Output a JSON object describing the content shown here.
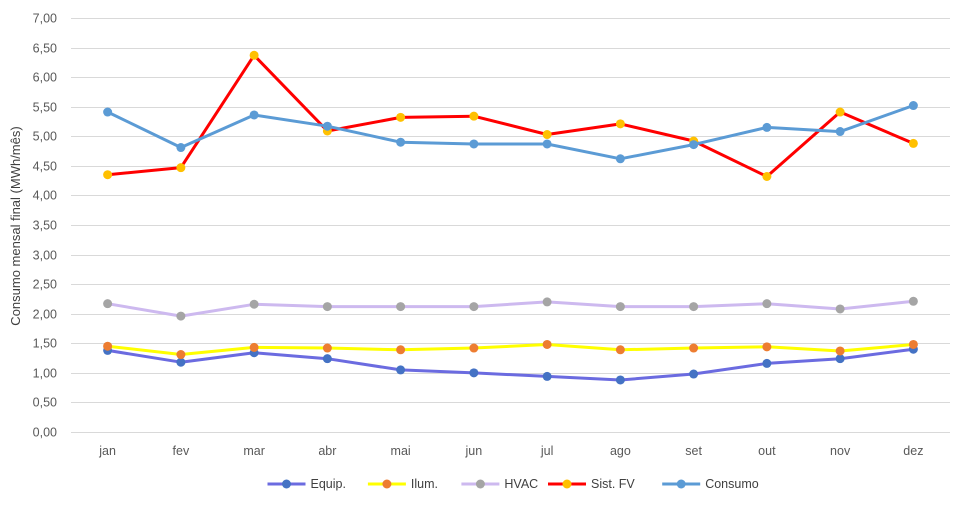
{
  "chart_data": {
    "type": "line",
    "title": "",
    "xlabel": "",
    "ylabel": "Consumo mensal final (MWh/mês)",
    "ylim": [
      0,
      7
    ],
    "y_ticks": [
      "0,00",
      "0,50",
      "1,00",
      "1,50",
      "2,00",
      "2,50",
      "3,00",
      "3,50",
      "4,00",
      "4,50",
      "5,00",
      "5,50",
      "6,00",
      "6,50",
      "7,00"
    ],
    "categories": [
      "jan",
      "fev",
      "mar",
      "abr",
      "mai",
      "jun",
      "jul",
      "ago",
      "set",
      "out",
      "nov",
      "dez"
    ],
    "grid": true,
    "legend_position": "bottom",
    "series": [
      {
        "name": "Equip.",
        "line_color": "#6b6be0",
        "marker_color": "#4472c4",
        "values": [
          1.38,
          1.18,
          1.34,
          1.24,
          1.05,
          1.0,
          0.94,
          0.88,
          0.98,
          1.16,
          1.24,
          1.4
        ]
      },
      {
        "name": "Ilum.",
        "line_color": "#ffff00",
        "marker_color": "#ed7d31",
        "values": [
          1.45,
          1.31,
          1.43,
          1.42,
          1.39,
          1.42,
          1.48,
          1.39,
          1.42,
          1.44,
          1.37,
          1.48
        ]
      },
      {
        "name": "HVAC",
        "line_color": "#cdb9ef",
        "marker_color": "#a5a5a5",
        "values": [
          2.17,
          1.96,
          2.16,
          2.12,
          2.12,
          2.12,
          2.2,
          2.12,
          2.12,
          2.17,
          2.08,
          2.21
        ]
      },
      {
        "name": "Sist. FV",
        "line_color": "#ff0000",
        "marker_color": "#ffc000",
        "values": [
          4.35,
          4.47,
          6.37,
          5.09,
          5.32,
          5.34,
          5.03,
          5.21,
          4.92,
          4.32,
          5.41,
          4.88
        ]
      },
      {
        "name": "Consumo",
        "line_color": "#5b9bd5",
        "marker_color": "#5b9bd5",
        "values": [
          5.41,
          4.81,
          5.36,
          5.17,
          4.9,
          4.87,
          4.87,
          4.62,
          4.86,
          5.15,
          5.08,
          5.52
        ]
      }
    ]
  }
}
